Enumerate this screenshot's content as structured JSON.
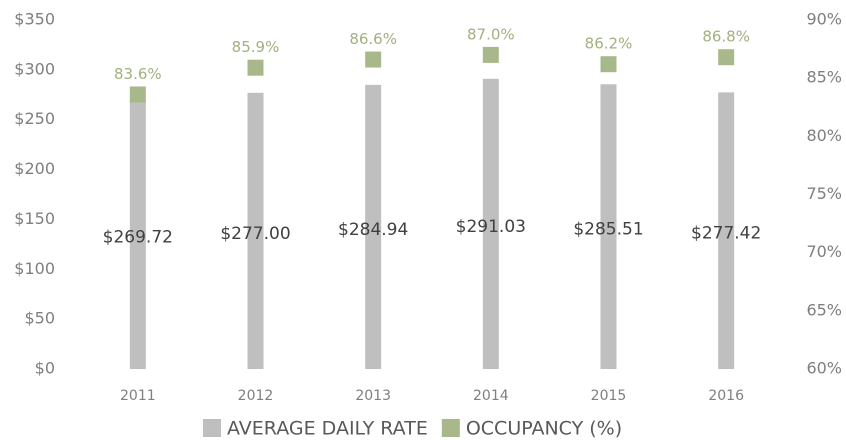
{
  "chart_data": {
    "type": "bar",
    "categories": [
      "2011",
      "2012",
      "2013",
      "2014",
      "2015",
      "2016"
    ],
    "series": [
      {
        "name": "AVERAGE DAILY RATE",
        "color": "#bfbfbf",
        "type": "bar",
        "values": [
          269.72,
          277.0,
          284.94,
          291.03,
          285.51,
          277.42
        ],
        "value_labels": [
          "$269.72",
          "$277.00",
          "$284.94",
          "$291.03",
          "$285.51",
          "$277.42"
        ]
      },
      {
        "name": "OCCUPANCY (%)",
        "color": "#a9b88a",
        "type": "marker",
        "axis": "y2",
        "values": [
          83.6,
          85.9,
          86.6,
          87.0,
          86.2,
          86.8
        ],
        "value_labels": [
          "83.6%",
          "85.9%",
          "86.6%",
          "87.0%",
          "86.2%",
          "86.8%"
        ]
      }
    ],
    "ylim": [
      0,
      350
    ],
    "yticks": [
      {
        "value": 0,
        "label": "$0"
      },
      {
        "value": 50,
        "label": "$50"
      },
      {
        "value": 100,
        "label": "$100"
      },
      {
        "value": 150,
        "label": "$150"
      },
      {
        "value": 200,
        "label": "$200"
      },
      {
        "value": 250,
        "label": "$250"
      },
      {
        "value": 300,
        "label": "$300"
      },
      {
        "value": 350,
        "label": "$350"
      }
    ],
    "y2lim": [
      60,
      90
    ],
    "y2ticks": [
      {
        "value": 60,
        "label": "60%"
      },
      {
        "value": 65,
        "label": "65%"
      },
      {
        "value": 70,
        "label": "70%"
      },
      {
        "value": 75,
        "label": "75%"
      },
      {
        "value": 80,
        "label": "80%"
      },
      {
        "value": 85,
        "label": "85%"
      },
      {
        "value": 90,
        "label": "90%"
      }
    ],
    "legend": "bottom"
  }
}
